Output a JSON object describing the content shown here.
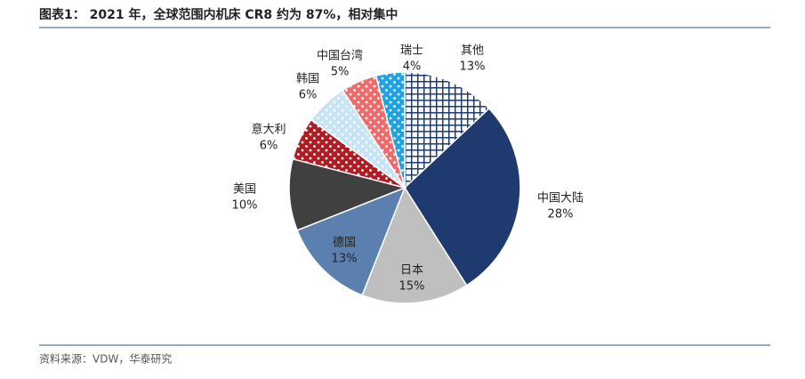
{
  "chart_data": {
    "type": "pie",
    "title": "图表1： 2021 年，全球范围内机床 CR8 约为 87%，相对集中",
    "source": "资料来源：VDW，华泰研究",
    "categories": [
      "其他",
      "中国大陆",
      "日本",
      "德国",
      "美国",
      "意大利",
      "韩国",
      "中国台湾",
      "瑞士"
    ],
    "values": [
      13,
      28,
      15,
      13,
      10,
      6,
      6,
      5,
      4
    ],
    "value_labels": [
      "13%",
      "28%",
      "15%",
      "13%",
      "10%",
      "6%",
      "6%",
      "5%",
      "4%"
    ],
    "colors": [
      "#1f3a6e",
      "#1f3a6e",
      "#bfbfbf",
      "#5b7fae",
      "#404040",
      "#b01c24",
      "#c7e4f5",
      "#ef6b6b",
      "#1ea3e2"
    ]
  }
}
